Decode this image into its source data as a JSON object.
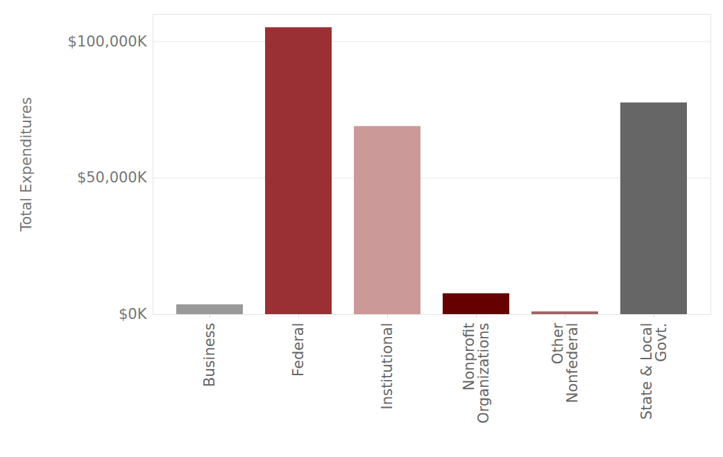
{
  "chart_data": {
    "type": "bar",
    "y_label": "Total Expenditures",
    "categories": [
      "Business",
      "Federal",
      "Institutional",
      "Nonprofit\nOrganizations",
      "Other\nNonfederal",
      "State & Local\nGovt."
    ],
    "values": [
      3600,
      105100,
      68900,
      7650,
      1000,
      77550
    ],
    "colors": [
      "#999999",
      "#9b3034",
      "#cc9999",
      "#660000",
      "#a06464",
      "#666666"
    ],
    "ylim": [
      0,
      110000
    ],
    "yticks": [
      {
        "value": 0,
        "label": "$0K"
      },
      {
        "value": 50000,
        "label": "$50,000K"
      },
      {
        "value": 100000,
        "label": "$100,000K"
      }
    ],
    "grid": true
  }
}
